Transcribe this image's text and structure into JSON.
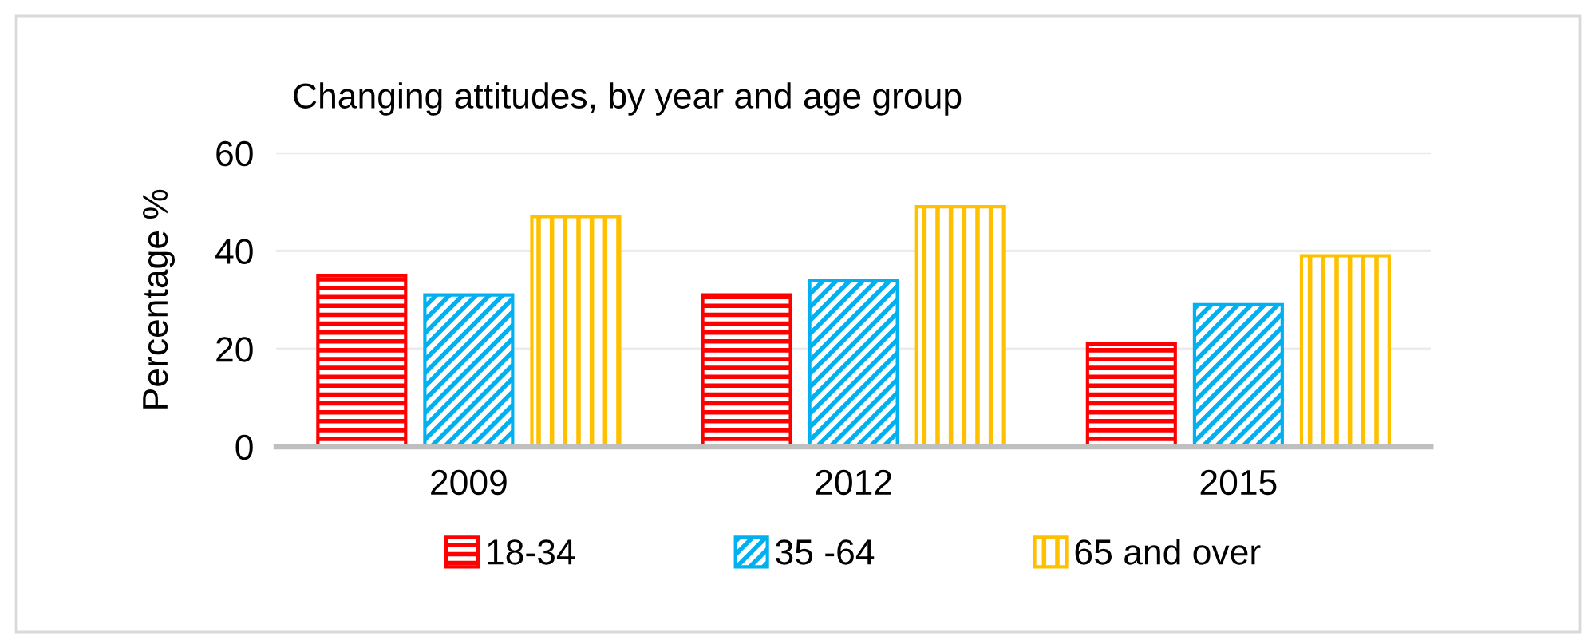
{
  "chart_data": {
    "type": "bar",
    "title": "Changing attitudes, by year and age group",
    "ylabel": "Percentage %",
    "categories": [
      "2009",
      "2012",
      "2015"
    ],
    "series": [
      {
        "name": "18-34",
        "color": "#ff0000",
        "values": [
          35,
          31,
          21
        ]
      },
      {
        "name": "35 -64",
        "color": "#00b0f0",
        "values": [
          31,
          34,
          29
        ]
      },
      {
        "name": "65 and over",
        "color": "#ffc000",
        "values": [
          47,
          49,
          39
        ]
      }
    ],
    "ylim": [
      0,
      60
    ],
    "yticks": [
      0,
      20,
      40,
      60
    ],
    "grid": "y",
    "legend": "bottom"
  }
}
